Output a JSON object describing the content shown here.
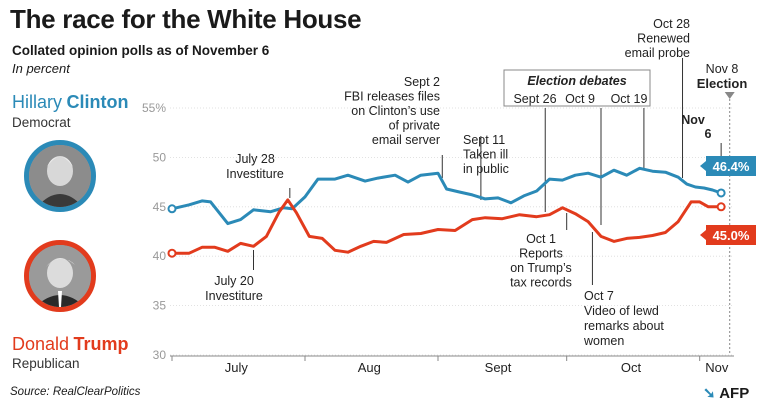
{
  "title": "The race for the White House",
  "subtitle": "Collated opinion polls as of November 6",
  "unit": "In percent",
  "source": "Source: RealClearPolitics",
  "credit": "AFP",
  "colors": {
    "clinton": "#2b8ab7",
    "trump": "#e23b1d",
    "axis": "#999999",
    "grid": "#d9d9d9"
  },
  "candidates": {
    "clinton": {
      "first": "Hillary",
      "last": "Clinton",
      "party": "Democrat",
      "value_label": "46.4%"
    },
    "trump": {
      "first": "Donald",
      "last": "Trump",
      "party": "Republican",
      "value_label": "45.0%"
    }
  },
  "annotations": [
    {
      "id": "clinton-july28",
      "lines": [
        "July 28",
        "Investiture"
      ]
    },
    {
      "id": "trump-july20",
      "lines": [
        "July 20",
        "Investiture"
      ]
    },
    {
      "id": "sept2",
      "lines": [
        "Sept 2",
        "FBI releases files",
        "on Clinton’s use",
        "of private",
        "email server"
      ]
    },
    {
      "id": "sept11",
      "lines": [
        "Sept 11",
        "Taken ill",
        "in public"
      ]
    },
    {
      "id": "debates-title",
      "lines": [
        "Election debates"
      ]
    },
    {
      "id": "debate1",
      "lines": [
        "Sept 26"
      ]
    },
    {
      "id": "debate2",
      "lines": [
        "Oct 9"
      ]
    },
    {
      "id": "debate3",
      "lines": [
        "Oct 19"
      ]
    },
    {
      "id": "oct1",
      "lines": [
        "Oct 1",
        "Reports",
        "on Trump’s",
        "tax records"
      ]
    },
    {
      "id": "oct7",
      "lines": [
        "Oct 7",
        "Video of lewd",
        "remarks about",
        "women"
      ]
    },
    {
      "id": "oct28",
      "lines": [
        "Oct 28",
        "Renewed",
        "email probe"
      ]
    },
    {
      "id": "nov6",
      "lines": [
        "Nov",
        "6"
      ]
    },
    {
      "id": "nov8",
      "lines": [
        "Nov 8",
        "Election"
      ]
    }
  ],
  "chart_data": {
    "type": "line",
    "title": "The race for the White House",
    "subtitle": "Collated opinion polls as of November 6",
    "ylabel": "In percent",
    "ylim": [
      30,
      55
    ],
    "yticks": [
      "55%",
      "50",
      "45",
      "40",
      "35",
      "30"
    ],
    "xticks": [
      "July",
      "Aug",
      "Sept",
      "Oct",
      "Nov"
    ],
    "xlim": [
      "2016-07-01",
      "2016-11-09"
    ],
    "grid": true,
    "series": [
      {
        "name": "Hillary Clinton",
        "x": [
          "2016-07-01",
          "2016-07-05",
          "2016-07-08",
          "2016-07-10",
          "2016-07-14",
          "2016-07-17",
          "2016-07-20",
          "2016-07-24",
          "2016-07-27",
          "2016-07-29",
          "2016-08-01",
          "2016-08-04",
          "2016-08-08",
          "2016-08-11",
          "2016-08-15",
          "2016-08-18",
          "2016-08-22",
          "2016-08-25",
          "2016-08-28",
          "2016-09-01",
          "2016-09-03",
          "2016-09-06",
          "2016-09-09",
          "2016-09-12",
          "2016-09-15",
          "2016-09-18",
          "2016-09-21",
          "2016-09-24",
          "2016-09-27",
          "2016-09-30",
          "2016-10-03",
          "2016-10-06",
          "2016-10-09",
          "2016-10-12",
          "2016-10-15",
          "2016-10-18",
          "2016-10-21",
          "2016-10-24",
          "2016-10-27",
          "2016-10-29",
          "2016-10-31",
          "2016-11-02",
          "2016-11-04",
          "2016-11-06"
        ],
        "values": [
          44.8,
          45.2,
          45.6,
          45.5,
          43.3,
          43.7,
          44.7,
          44.5,
          44.9,
          44.8,
          46.0,
          47.8,
          47.8,
          48.2,
          47.6,
          47.9,
          48.2,
          47.5,
          48.2,
          48.4,
          46.8,
          46.5,
          46.2,
          45.8,
          45.9,
          45.4,
          46.1,
          46.6,
          47.8,
          47.7,
          48.2,
          48.4,
          48.0,
          48.7,
          48.2,
          48.9,
          48.6,
          48.5,
          48.0,
          47.3,
          47.0,
          46.9,
          46.7,
          46.4
        ]
      },
      {
        "name": "Donald Trump",
        "x": [
          "2016-07-01",
          "2016-07-05",
          "2016-07-08",
          "2016-07-11",
          "2016-07-14",
          "2016-07-17",
          "2016-07-20",
          "2016-07-23",
          "2016-07-26",
          "2016-07-28",
          "2016-07-30",
          "2016-08-02",
          "2016-08-05",
          "2016-08-08",
          "2016-08-11",
          "2016-08-14",
          "2016-08-17",
          "2016-08-20",
          "2016-08-24",
          "2016-08-28",
          "2016-09-01",
          "2016-09-05",
          "2016-09-09",
          "2016-09-12",
          "2016-09-16",
          "2016-09-20",
          "2016-09-24",
          "2016-09-27",
          "2016-09-30",
          "2016-10-03",
          "2016-10-06",
          "2016-10-09",
          "2016-10-12",
          "2016-10-15",
          "2016-10-18",
          "2016-10-21",
          "2016-10-24",
          "2016-10-27",
          "2016-10-30",
          "2016-11-01",
          "2016-11-03",
          "2016-11-06"
        ],
        "values": [
          40.3,
          40.3,
          40.9,
          40.9,
          40.5,
          41.3,
          41.0,
          42.0,
          44.5,
          45.7,
          44.4,
          42.0,
          41.8,
          40.6,
          40.4,
          41.0,
          41.5,
          41.4,
          42.2,
          42.3,
          42.7,
          42.6,
          43.7,
          43.9,
          43.8,
          44.2,
          44.0,
          44.2,
          44.9,
          44.3,
          43.5,
          42.0,
          41.5,
          41.8,
          41.9,
          42.1,
          42.4,
          43.5,
          45.5,
          45.5,
          45.0,
          45.0
        ]
      }
    ]
  }
}
